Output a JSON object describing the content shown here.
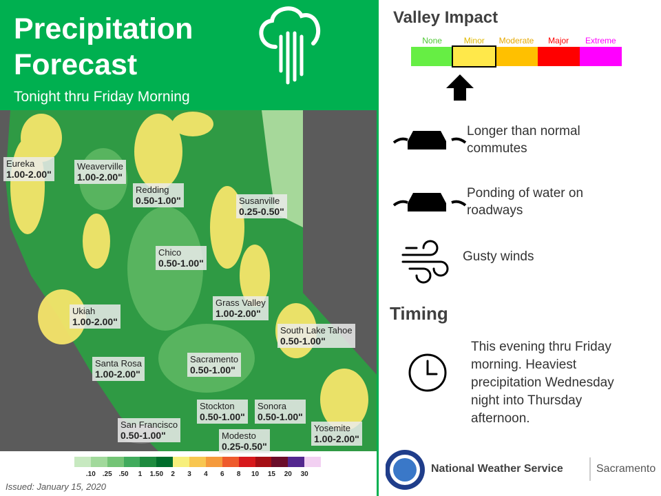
{
  "header": {
    "title": "Precipitation Forecast",
    "subtitle": "Tonight thru Friday Morning"
  },
  "map": {
    "labels": [
      {
        "name": "Eureka",
        "amount": "1.00-2.00\""
      },
      {
        "name": "Weaverville",
        "amount": "1.00-2.00\""
      },
      {
        "name": "Redding",
        "amount": "0.50-1.00\""
      },
      {
        "name": "Susanville",
        "amount": "0.25-0.50\""
      },
      {
        "name": "Chico",
        "amount": "0.50-1.00\""
      },
      {
        "name": "Grass Valley",
        "amount": "1.00-2.00\""
      },
      {
        "name": "Ukiah",
        "amount": "1.00-2.00\""
      },
      {
        "name": "South Lake Tahoe",
        "amount": "0.50-1.00\""
      },
      {
        "name": "Santa Rosa",
        "amount": "1.00-2.00\""
      },
      {
        "name": "Sacramento",
        "amount": "0.50-1.00\""
      },
      {
        "name": "Stockton",
        "amount": "0.50-1.00\""
      },
      {
        "name": "Sonora",
        "amount": "0.50-1.00\""
      },
      {
        "name": "San Francisco",
        "amount": "0.50-1.00\""
      },
      {
        "name": "Modesto",
        "amount": "0.25-0.50\""
      },
      {
        "name": "Yosemite",
        "amount": "1.00-2.00\""
      }
    ],
    "legend": {
      "labels": [
        ".10",
        ".25",
        ".50",
        "1",
        "1.50",
        "2",
        "3",
        "4",
        "6",
        "8",
        "10",
        "15",
        "20",
        "30"
      ],
      "colors": [
        "#c7e9c0",
        "#a1d99b",
        "#74c476",
        "#41ab5d",
        "#1e8b3f",
        "#006d2c",
        "#f7ef7c",
        "#f8c650",
        "#f59a3c",
        "#ee5a2c",
        "#d7191c",
        "#a50f15",
        "#6b0d2a",
        "#54278f",
        "#f2d0f2"
      ]
    },
    "issued": "Issued: January 15, 2020"
  },
  "impact": {
    "title": "Valley Impact",
    "levels": [
      {
        "label": "None",
        "color": "#66ee44"
      },
      {
        "label": "Minor",
        "color": "#ffe84a"
      },
      {
        "label": "Moderate",
        "color": "#ffc000"
      },
      {
        "label": "Major",
        "color": "#ff0000"
      },
      {
        "label": "Extreme",
        "color": "#ff00ff"
      }
    ],
    "selected": 1,
    "items": [
      "Longer than normal commutes",
      "Ponding of water on roadways",
      "Gusty winds"
    ]
  },
  "timing": {
    "title": "Timing",
    "text": "This evening thru Friday morning. Heaviest precipitation Wednesday night into Thursday afternoon."
  },
  "footer": {
    "org": "National Weather Service",
    "office": "Sacramento"
  }
}
